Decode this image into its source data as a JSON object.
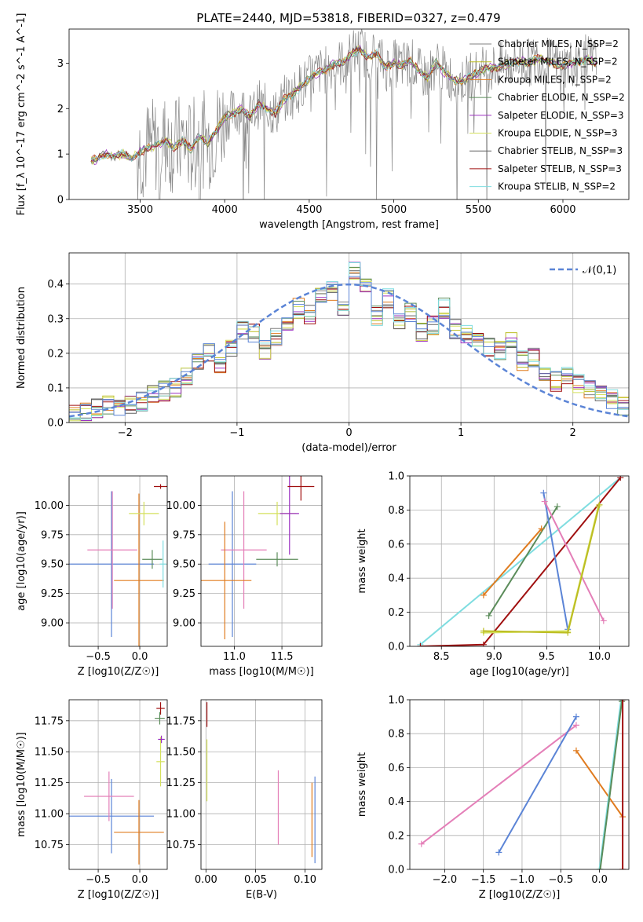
{
  "page_title": "PLATE=2440, MJD=53818, FIBERID=0327, z=0.479",
  "colors": {
    "chabrier_miles": "#808080",
    "salpeter_miles": "#bcbd22",
    "kroupa_miles": "#e07b1f",
    "chabrier_elodie": "#5b8c5a",
    "salpeter_elodie": "#9b30c0",
    "kroupa_elodie": "#d4e05c",
    "chabrier_stelib": "#606060",
    "salpeter_stelib": "#a01010",
    "kroupa_stelib": "#7fdde0",
    "blue": "#5b84d6",
    "pink": "#e47fb8",
    "data": "#888888"
  },
  "chart_data": [
    {
      "id": "spectrum",
      "type": "line",
      "title": "PLATE=2440, MJD=53818, FIBERID=0327, z=0.479",
      "xlabel": "wavelength [Angstrom, rest frame]",
      "ylabel": "Flux [f_λ 10^-17 erg cm^-2 s^-1 A^-1]",
      "xlim": [
        3080,
        6390
      ],
      "ylim": [
        0,
        3.75
      ],
      "xticks": [
        3500,
        4000,
        4500,
        5000,
        5500,
        6000
      ],
      "yticks": [
        0,
        1,
        2,
        3
      ],
      "legend_position": "right",
      "legend": [
        "Chabrier MILES, N_SSP=2",
        "Salpeter MILES, N_SSP=2",
        "Kroupa MILES, N_SSP=2",
        "Chabrier ELODIE, N_SSP=2",
        "Salpeter ELODIE, N_SSP=3",
        "Kroupa ELODIE, N_SSP=3",
        "Chabrier STELIB, N_SSP=3",
        "Salpeter STELIB, N_SSP=3",
        "Kroupa STELIB, N_SSP=2"
      ],
      "model_x": [
        3210,
        3250,
        3300,
        3350,
        3400,
        3450,
        3500,
        3550,
        3600,
        3650,
        3700,
        3750,
        3800,
        3850,
        3900,
        3950,
        4000,
        4050,
        4100,
        4150,
        4200,
        4250,
        4300,
        4350,
        4400,
        4450,
        4500,
        4550,
        4600,
        4650,
        4700,
        4750,
        4800,
        4850,
        4900,
        4950,
        5000,
        5050,
        5100,
        5150,
        5200,
        5250,
        5300,
        5350,
        5400,
        5450,
        5500,
        5550,
        5600,
        5650,
        5700,
        5750,
        5800,
        5850,
        5900,
        5950,
        6000,
        6050,
        6100,
        6150,
        6200
      ],
      "model_y": [
        0.85,
        0.9,
        1.0,
        0.95,
        1.0,
        0.9,
        1.05,
        1.15,
        1.2,
        1.3,
        1.15,
        1.3,
        1.1,
        1.4,
        1.25,
        1.5,
        1.8,
        1.9,
        2.0,
        1.8,
        2.1,
        2.0,
        1.9,
        2.2,
        2.3,
        2.5,
        2.65,
        2.8,
        2.85,
        3.0,
        3.0,
        3.2,
        3.3,
        3.15,
        3.2,
        2.9,
        3.0,
        2.95,
        3.05,
        2.8,
        2.7,
        3.0,
        2.8,
        2.65,
        2.6,
        2.7,
        2.8,
        2.9,
        2.9,
        2.95,
        3.0,
        3.05,
        3.0,
        3.1,
        3.05,
        3.0,
        2.95,
        3.0,
        3.05,
        3.1,
        3.0
      ]
    },
    {
      "id": "residuals",
      "type": "line",
      "xlabel": "(data-model)/error",
      "ylabel": "Normed distribution",
      "xlim": [
        -2.5,
        2.5
      ],
      "ylim": [
        0,
        0.49
      ],
      "xticks": [
        -2,
        -1,
        0,
        1,
        2
      ],
      "yticks": [
        0.0,
        0.1,
        0.2,
        0.3,
        0.4
      ],
      "grid": true,
      "legend": [
        "𝒩(0,1)"
      ],
      "legend_position": "top-right",
      "bins": [
        -2.5,
        -2.4,
        -2.3,
        -2.2,
        -2.1,
        -2.0,
        -1.9,
        -1.8,
        -1.7,
        -1.6,
        -1.5,
        -1.4,
        -1.3,
        -1.2,
        -1.1,
        -1.0,
        -0.9,
        -0.8,
        -0.7,
        -0.6,
        -0.5,
        -0.4,
        -0.3,
        -0.2,
        -0.1,
        0.0,
        0.1,
        0.2,
        0.3,
        0.4,
        0.5,
        0.6,
        0.7,
        0.8,
        0.9,
        1.0,
        1.1,
        1.2,
        1.3,
        1.4,
        1.5,
        1.6,
        1.7,
        1.8,
        1.9,
        2.0,
        2.1,
        2.2,
        2.3,
        2.4
      ],
      "hist": [
        0.02,
        0.03,
        0.04,
        0.05,
        0.04,
        0.05,
        0.06,
        0.08,
        0.09,
        0.1,
        0.13,
        0.17,
        0.2,
        0.16,
        0.22,
        0.27,
        0.26,
        0.21,
        0.25,
        0.29,
        0.33,
        0.31,
        0.36,
        0.38,
        0.33,
        0.44,
        0.39,
        0.31,
        0.36,
        0.29,
        0.32,
        0.26,
        0.28,
        0.33,
        0.27,
        0.26,
        0.25,
        0.22,
        0.21,
        0.24,
        0.18,
        0.19,
        0.15,
        0.12,
        0.14,
        0.11,
        0.1,
        0.09,
        0.07,
        0.05
      ]
    },
    {
      "id": "age-vs-z",
      "type": "scatter",
      "xlabel": "Z [log10(Z/Z☉)]",
      "ylabel": "age [log10(age/yr)]",
      "xlim": [
        -0.85,
        0.33
      ],
      "ylim": [
        8.8,
        10.25
      ],
      "xticks": [
        -0.5,
        0.0
      ],
      "yticks": [
        9.0,
        9.25,
        9.5,
        9.75,
        10.0
      ],
      "grid": true,
      "points": [
        {
          "x": -0.34,
          "y": 9.5,
          "xerr": 0.51,
          "yerr": 0.62,
          "color": "#5b84d6"
        },
        {
          "x": -0.33,
          "y": 9.62,
          "xerr": 0.3,
          "yerr": 0.5,
          "color": "#e47fb8"
        },
        {
          "x": -0.01,
          "y": 9.36,
          "xerr": 0.3,
          "yerr": 0.74,
          "color": "#e07b1f"
        },
        {
          "x": 0.05,
          "y": 9.93,
          "xerr": 0.18,
          "yerr": 0.1,
          "color": "#d4e05c"
        },
        {
          "x": 0.15,
          "y": 9.54,
          "xerr": 0.12,
          "yerr": 0.08,
          "color": "#5b8c5a"
        },
        {
          "x": 0.25,
          "y": 10.16,
          "xerr": 0.08,
          "yerr": 0.02,
          "color": "#a01010"
        },
        {
          "x": 0.28,
          "y": 9.5,
          "xerr": 0.04,
          "yerr": 0.2,
          "color": "#7fdde0"
        }
      ]
    },
    {
      "id": "age-vs-mass",
      "type": "scatter",
      "xlabel": "mass [log10(M/M☉)]",
      "ylabel": "",
      "xlim": [
        10.65,
        11.92
      ],
      "ylim": [
        8.8,
        10.25
      ],
      "xticks": [
        11.0,
        11.5
      ],
      "yticks": [
        9.0,
        9.25,
        9.5,
        9.75,
        10.0
      ],
      "grid": true,
      "points": [
        {
          "x": 10.98,
          "y": 9.5,
          "xerr": 0.25,
          "yerr": 0.62,
          "color": "#5b84d6"
        },
        {
          "x": 11.1,
          "y": 9.62,
          "xerr": 0.24,
          "yerr": 0.5,
          "color": "#e47fb8"
        },
        {
          "x": 10.9,
          "y": 9.36,
          "xerr": 0.28,
          "yerr": 0.5,
          "color": "#e07b1f"
        },
        {
          "x": 11.45,
          "y": 9.93,
          "xerr": 0.2,
          "yerr": 0.1,
          "color": "#d4e05c"
        },
        {
          "x": 11.45,
          "y": 9.54,
          "xerr": 0.22,
          "yerr": 0.06,
          "color": "#5b8c5a"
        },
        {
          "x": 11.58,
          "y": 9.93,
          "xerr": 0.1,
          "yerr": 0.35,
          "color": "#9b30c0"
        },
        {
          "x": 11.7,
          "y": 10.16,
          "xerr": 0.14,
          "yerr": 0.12,
          "color": "#a01010"
        }
      ]
    },
    {
      "id": "mass-weight-vs-age",
      "type": "line",
      "xlabel": "age [log10(age/yr)]",
      "ylabel": "mass weight",
      "xlim": [
        8.2,
        10.28
      ],
      "ylim": [
        0,
        1.0
      ],
      "xticks": [
        8.5,
        9.0,
        9.5,
        10.0
      ],
      "yticks": [
        0.0,
        0.2,
        0.4,
        0.6,
        0.8,
        1.0
      ],
      "grid": true,
      "series": [
        {
          "color": "#7fdde0",
          "x": [
            8.3,
            10.2
          ],
          "y": [
            0.01,
            0.99
          ]
        },
        {
          "color": "#a01010",
          "x": [
            8.3,
            8.9,
            10.2
          ],
          "y": [
            0.0,
            0.01,
            0.99
          ]
        },
        {
          "color": "#5b8c5a",
          "x": [
            8.95,
            9.6
          ],
          "y": [
            0.18,
            0.82
          ]
        },
        {
          "color": "#e07b1f",
          "x": [
            8.9,
            9.45
          ],
          "y": [
            0.3,
            0.69
          ]
        },
        {
          "color": "#5b84d6",
          "x": [
            9.47,
            9.7
          ],
          "y": [
            0.9,
            0.1
          ]
        },
        {
          "color": "#e47fb8",
          "x": [
            9.48,
            10.04
          ],
          "y": [
            0.85,
            0.15
          ]
        },
        {
          "color": "#d4e05c",
          "x": [
            8.9,
            9.7,
            9.99
          ],
          "y": [
            0.08,
            0.09,
            0.82
          ]
        },
        {
          "color": "#bcbd22",
          "x": [
            8.9,
            9.7,
            10.0
          ],
          "y": [
            0.09,
            0.08,
            0.83
          ]
        }
      ]
    },
    {
      "id": "mass-vs-z",
      "type": "scatter",
      "xlabel": "Z [log10(Z/Z☉)]",
      "ylabel": "mass [log10(M/M☉)]",
      "xlim": [
        -0.85,
        0.33
      ],
      "ylim": [
        10.55,
        11.92
      ],
      "xticks": [
        -0.5,
        0.0
      ],
      "yticks": [
        10.75,
        11.0,
        11.25,
        11.5,
        11.75
      ],
      "grid": true,
      "points": [
        {
          "x": -0.34,
          "y": 10.98,
          "xerr": 0.51,
          "yerr": 0.3,
          "color": "#5b84d6"
        },
        {
          "x": -0.37,
          "y": 11.14,
          "xerr": 0.3,
          "yerr": 0.2,
          "color": "#e47fb8"
        },
        {
          "x": -0.01,
          "y": 10.85,
          "xerr": 0.3,
          "yerr": 0.26,
          "color": "#e07b1f"
        },
        {
          "x": 0.25,
          "y": 11.42,
          "xerr": 0.05,
          "yerr": 0.2,
          "color": "#d4e05c"
        },
        {
          "x": 0.25,
          "y": 11.85,
          "xerr": 0.05,
          "yerr": 0.05,
          "color": "#a01010"
        },
        {
          "x": 0.24,
          "y": 11.77,
          "xerr": 0.06,
          "yerr": 0.05,
          "color": "#5b8c5a"
        },
        {
          "x": 0.26,
          "y": 11.6,
          "xerr": 0.04,
          "yerr": 0.03,
          "color": "#9b30c0"
        }
      ]
    },
    {
      "id": "mass-vs-ebv",
      "type": "scatter",
      "xlabel": "E(B-V)",
      "ylabel": "",
      "xlim": [
        -0.005,
        0.117
      ],
      "ylim": [
        10.55,
        11.92
      ],
      "xticks": [
        0.0,
        0.05,
        0.1
      ],
      "yticks": [
        10.75,
        11.0,
        11.25,
        11.5,
        11.75
      ],
      "grid": true,
      "points": [
        {
          "x": 0.001,
          "y": 11.8,
          "xerr": 0.0,
          "yerr": 0.1,
          "color": "#a01010"
        },
        {
          "x": 0.001,
          "y": 11.35,
          "xerr": 0.0,
          "yerr": 0.25,
          "color": "#d4e05c"
        },
        {
          "x": 0.073,
          "y": 11.05,
          "xerr": 0.0,
          "yerr": 0.3,
          "color": "#e47fb8"
        },
        {
          "x": 0.107,
          "y": 10.95,
          "xerr": 0.0,
          "yerr": 0.3,
          "color": "#e07b1f"
        },
        {
          "x": 0.11,
          "y": 10.95,
          "xerr": 0.0,
          "yerr": 0.35,
          "color": "#5b84d6"
        }
      ]
    },
    {
      "id": "mass-weight-vs-z",
      "type": "line",
      "xlabel": "Z [log10(Z/Z☉)]",
      "ylabel": "mass weight",
      "xlim": [
        -2.45,
        0.38
      ],
      "ylim": [
        0,
        1.0
      ],
      "xticks": [
        -2.0,
        -1.5,
        -1.0,
        -0.5,
        0.0
      ],
      "yticks": [
        0.0,
        0.2,
        0.4,
        0.6,
        0.8,
        1.0
      ],
      "grid": true,
      "series": [
        {
          "color": "#e47fb8",
          "x": [
            -2.3,
            -0.3
          ],
          "y": [
            0.15,
            0.85
          ]
        },
        {
          "color": "#5b84d6",
          "x": [
            -1.3,
            -0.3
          ],
          "y": [
            0.1,
            0.9
          ]
        },
        {
          "color": "#e07b1f",
          "x": [
            -0.3,
            0.3
          ],
          "y": [
            0.7,
            0.31
          ]
        },
        {
          "color": "#7fdde0",
          "x": [
            0.0,
            0.28
          ],
          "y": [
            0.0,
            1.0
          ]
        },
        {
          "color": "#5b8c5a",
          "x": [
            0.01,
            0.29
          ],
          "y": [
            0.0,
            0.99
          ]
        },
        {
          "color": "#a01010",
          "x": [
            0.3,
            0.3
          ],
          "y": [
            0.0,
            1.0
          ]
        }
      ]
    }
  ]
}
